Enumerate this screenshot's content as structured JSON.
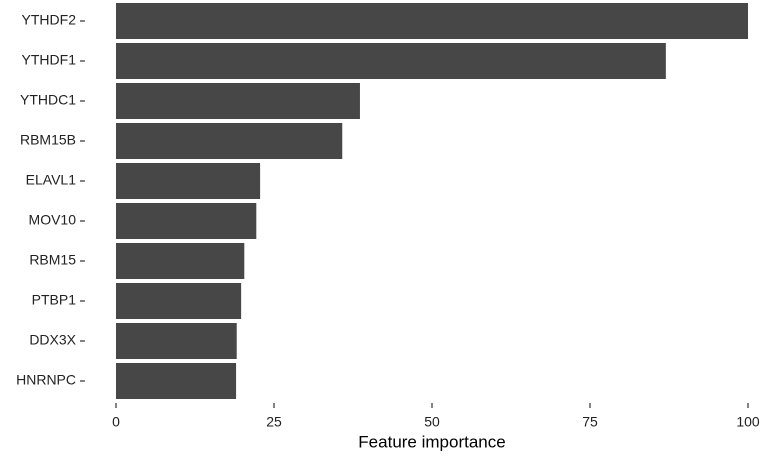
{
  "chart_data": {
    "type": "bar",
    "orientation": "horizontal",
    "x_label": "Feature importance",
    "categories": [
      "YTHDF2",
      "YTHDF1",
      "YTHDC1",
      "RBM15B",
      "ELAVL1",
      "MOV10",
      "RBM15",
      "PTBP1",
      "DDX3X",
      "HNRNPC"
    ],
    "values": [
      100,
      87.0,
      38.6,
      35.8,
      22.8,
      22.2,
      20.3,
      19.8,
      19.1,
      19.0
    ],
    "color": "#474747",
    "xlim": [
      0,
      100
    ],
    "xticks": [
      0,
      25,
      50,
      75,
      100
    ],
    "grid": false
  }
}
